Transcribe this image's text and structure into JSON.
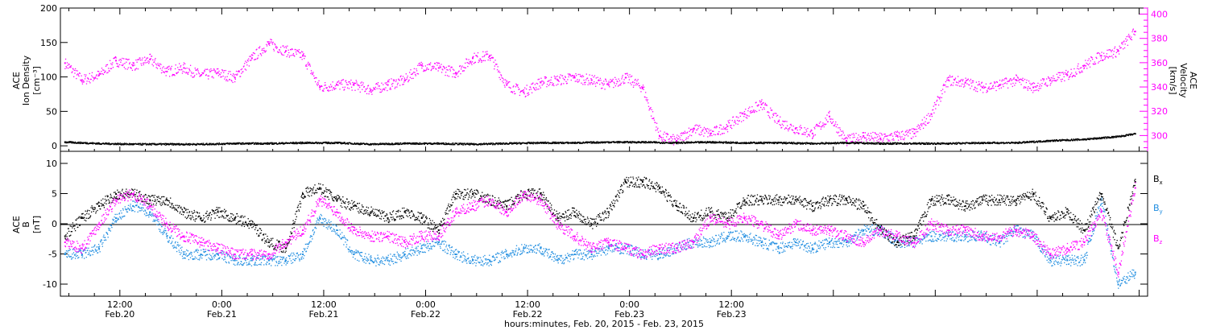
{
  "chart_data": [
    {
      "type": "scatter",
      "panel": "top",
      "ylabel_left": [
        "ACE",
        "Ion Density",
        "[cm⁻³]"
      ],
      "ylabel_right": [
        "ACE",
        "Velocity",
        "[km/s]"
      ],
      "ylim_left": [
        -8,
        200
      ],
      "yticks_left": [
        0,
        50,
        100,
        150,
        200
      ],
      "ylim_right": [
        287,
        405
      ],
      "yticks_right": [
        300,
        320,
        340,
        360,
        380,
        400
      ],
      "right_axis_color": "#ff00ff",
      "grid": false,
      "series": [
        {
          "name": "Ion Density",
          "axis": "left",
          "color": "#000000",
          "x": [
            0,
            4,
            8,
            12,
            16,
            20,
            24,
            28,
            32,
            36,
            40,
            44,
            48,
            52,
            56,
            60,
            64,
            68,
            72,
            76,
            80,
            84,
            88,
            92,
            96,
            100,
            104,
            108,
            112,
            116,
            120,
            124,
            126
          ],
          "y": [
            6,
            4,
            3,
            3,
            3,
            4,
            4,
            5,
            5,
            3,
            4,
            4,
            3,
            4,
            5,
            5,
            6,
            6,
            5,
            6,
            5,
            5,
            4,
            5,
            4,
            4,
            4,
            5,
            5,
            8,
            10,
            14,
            18
          ]
        },
        {
          "name": "Velocity",
          "axis": "right",
          "color": "#ff00ff",
          "x": [
            0,
            2,
            4,
            6,
            8,
            10,
            12,
            14,
            16,
            18,
            20,
            22,
            24,
            26,
            28,
            30,
            32,
            34,
            36,
            38,
            40,
            42,
            44,
            46,
            48,
            50,
            52,
            54,
            56,
            58,
            60,
            62,
            64,
            66,
            68,
            70,
            72,
            74,
            76,
            78,
            80,
            82,
            84,
            86,
            88,
            90,
            92,
            94,
            96,
            98,
            100,
            102,
            104,
            106,
            108,
            110,
            112,
            114,
            116,
            118,
            120,
            122,
            124,
            126
          ],
          "y": [
            360,
            346,
            350,
            362,
            358,
            363,
            353,
            356,
            350,
            352,
            348,
            364,
            376,
            370,
            366,
            340,
            342,
            342,
            338,
            342,
            346,
            358,
            356,
            352,
            364,
            366,
            342,
            336,
            344,
            346,
            348,
            346,
            342,
            348,
            340,
            300,
            296,
            306,
            302,
            308,
            318,
            326,
            312,
            306,
            302,
            316,
            296,
            300,
            298,
            300,
            302,
            318,
            346,
            344,
            340,
            342,
            346,
            340,
            346,
            350,
            358,
            366,
            370,
            386
          ]
        }
      ]
    },
    {
      "type": "scatter",
      "panel": "bottom",
      "ylabel": [
        "ACE",
        "B",
        "[nT]"
      ],
      "ylim": [
        -12,
        12
      ],
      "yticks": [
        -10,
        -5,
        0,
        5,
        10
      ],
      "zero_line": true,
      "grid": false,
      "legend_position": "right",
      "xlabel": "hours:minutes, Feb. 20, 2015 - Feb. 23, 2015",
      "xlim_hours": [
        5,
        133
      ],
      "xticks": [
        {
          "hour": 12,
          "time": "12:00",
          "date": "Feb.20"
        },
        {
          "hour": 24,
          "time": "0:00",
          "date": "Feb.21"
        },
        {
          "hour": 36,
          "time": "12:00",
          "date": "Feb.21"
        },
        {
          "hour": 48,
          "time": "0:00",
          "date": "Feb.22"
        },
        {
          "hour": 60,
          "time": "12:00",
          "date": "Feb.22"
        },
        {
          "hour": 72,
          "time": "0:00",
          "date": "Feb.23"
        },
        {
          "hour": 84,
          "time": "12:00",
          "date": "Feb.23"
        }
      ],
      "series": [
        {
          "name": "Bx",
          "label_main": "B",
          "label_sub": "x",
          "color": "#000000",
          "x": [
            0,
            2,
            4,
            6,
            8,
            10,
            12,
            14,
            16,
            18,
            20,
            22,
            24,
            26,
            28,
            30,
            32,
            34,
            36,
            38,
            40,
            42,
            44,
            46,
            48,
            50,
            52,
            54,
            56,
            58,
            60,
            62,
            64,
            66,
            68,
            70,
            72,
            74,
            76,
            78,
            80,
            82,
            84,
            86,
            88,
            90,
            92,
            94,
            96,
            98,
            100,
            102,
            104,
            106,
            108,
            110,
            112,
            114,
            116,
            118,
            120,
            122,
            124,
            126
          ],
          "y": [
            -2,
            1,
            3,
            5,
            5,
            4,
            4,
            2,
            1,
            2,
            1,
            0,
            -3,
            -4,
            5,
            6,
            4,
            3,
            2,
            1,
            2,
            1,
            -1,
            5,
            5,
            4,
            3,
            5,
            5,
            1,
            2,
            0,
            2,
            7,
            7,
            6,
            3,
            1,
            2,
            1,
            4,
            4,
            4,
            4,
            3,
            4,
            4,
            3,
            -1,
            -3,
            -2,
            4,
            4,
            3,
            4,
            4,
            4,
            5,
            1,
            2,
            -1,
            5,
            -4,
            7
          ]
        },
        {
          "name": "By",
          "label_main": "B",
          "label_sub": "y",
          "color": "#1f8de0",
          "x": [
            0,
            2,
            4,
            6,
            8,
            10,
            12,
            14,
            16,
            18,
            20,
            22,
            24,
            26,
            28,
            30,
            32,
            34,
            36,
            38,
            40,
            42,
            44,
            46,
            48,
            50,
            52,
            54,
            56,
            58,
            60,
            62,
            64,
            66,
            68,
            70,
            72,
            74,
            76,
            78,
            80,
            82,
            84,
            86,
            88,
            90,
            92,
            94,
            96,
            98,
            100,
            102,
            104,
            106,
            108,
            110,
            112,
            114,
            116,
            118,
            120,
            122,
            124,
            126
          ],
          "y": [
            -5,
            -5,
            -4,
            1,
            3,
            2,
            -2,
            -5,
            -5,
            -5,
            -6,
            -6,
            -6,
            -6,
            -5,
            1,
            -1,
            -5,
            -6,
            -6,
            -5,
            -4,
            -3,
            -5,
            -6,
            -6,
            -5,
            -4,
            -4,
            -6,
            -5,
            -5,
            -4,
            -4,
            -5,
            -5,
            -4,
            -3,
            -3,
            -2,
            -2,
            -3,
            -4,
            -3,
            -4,
            -3,
            -3,
            -1,
            -1,
            -3,
            -3,
            -2,
            -2,
            -2,
            -2,
            -3,
            -1,
            -2,
            -6,
            -6,
            -6,
            4,
            -10,
            -8
          ]
        },
        {
          "name": "Bz",
          "label_main": "B",
          "label_sub": "z",
          "color": "#ff00ff",
          "x": [
            0,
            2,
            4,
            6,
            8,
            10,
            12,
            14,
            16,
            18,
            20,
            22,
            24,
            26,
            28,
            30,
            32,
            34,
            36,
            38,
            40,
            42,
            44,
            46,
            48,
            50,
            52,
            54,
            56,
            58,
            60,
            62,
            64,
            66,
            68,
            70,
            72,
            74,
            76,
            78,
            80,
            82,
            84,
            86,
            88,
            90,
            92,
            94,
            96,
            98,
            100,
            102,
            104,
            106,
            108,
            110,
            112,
            114,
            116,
            118,
            120,
            122,
            124,
            126
          ],
          "y": [
            -3,
            -4,
            0,
            4,
            5,
            3,
            0,
            -2,
            -3,
            -4,
            -5,
            -5,
            -5,
            -3,
            -1,
            4,
            2,
            -1,
            -2,
            -2,
            -3,
            -2,
            -2,
            2,
            3,
            4,
            2,
            5,
            4,
            0,
            -2,
            -4,
            -3,
            -4,
            -5,
            -4,
            -4,
            -3,
            1,
            0,
            1,
            0,
            -2,
            0,
            -1,
            -1,
            -2,
            -3,
            -1,
            -2,
            -3,
            0,
            -1,
            -1,
            -2,
            -2,
            -1,
            -2,
            -5,
            -4,
            -3,
            2,
            -8,
            6
          ]
        }
      ]
    }
  ]
}
